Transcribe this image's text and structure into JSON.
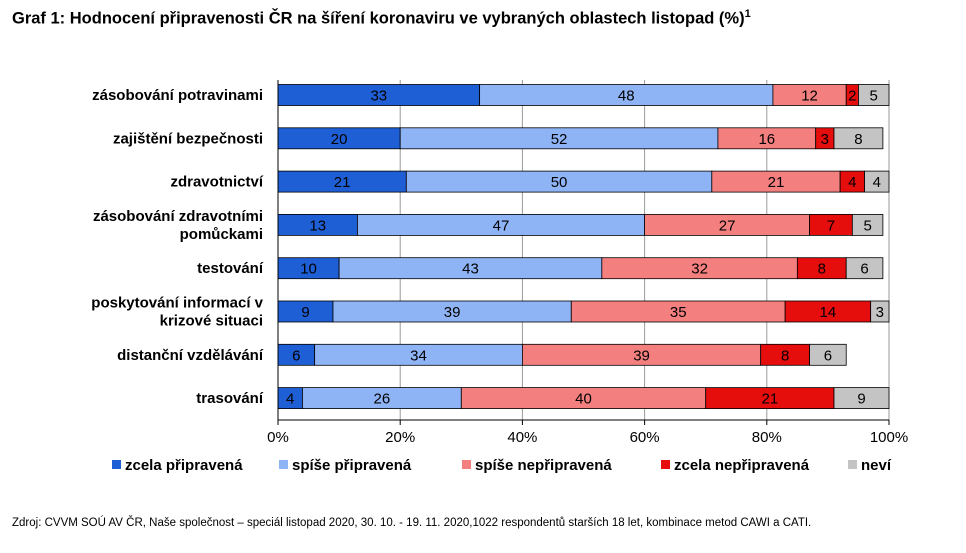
{
  "title": "Graf 1: Hodnocení připravenosti ČR na šíření koronaviru ve vybraných oblastech listopad (%)",
  "title_superscript": "1",
  "source": "Zdroj: CVVM SOÚ AV ČR, Naše společnost – speciál listopad 2020, 30. 10. - 19. 11. 2020,1022 respondentů starších 18 let, kombinace metod CAWI a CATI.",
  "chart_data": {
    "type": "bar",
    "orientation": "horizontal",
    "stacked": "percent",
    "categories": [
      [
        "zásobování potravinami"
      ],
      [
        "zajištění bezpečnosti"
      ],
      [
        "zdravotnictví"
      ],
      [
        "zásobování zdravotními",
        "pomůckami"
      ],
      [
        "testování"
      ],
      [
        "poskytování informací v",
        "krizové situaci"
      ],
      [
        "distanční vzdělávání"
      ],
      [
        "trasování"
      ]
    ],
    "series": [
      {
        "name": "zcela připravená",
        "color": "#1f5fd6",
        "values": [
          33,
          20,
          21,
          13,
          10,
          9,
          6,
          4
        ]
      },
      {
        "name": "spíše připravená",
        "color": "#8fb4f6",
        "values": [
          48,
          52,
          50,
          47,
          43,
          39,
          34,
          26
        ]
      },
      {
        "name": "spíše nepřipravená",
        "color": "#f47f7f",
        "values": [
          12,
          16,
          21,
          27,
          32,
          35,
          39,
          40
        ]
      },
      {
        "name": "zcela nepřipravená",
        "color": "#e60d0d",
        "values": [
          2,
          3,
          4,
          7,
          8,
          14,
          8,
          21
        ]
      },
      {
        "name": "neví",
        "color": "#c4c4c4",
        "values": [
          5,
          8,
          4,
          5,
          6,
          3,
          6,
          9
        ]
      }
    ],
    "x_ticks": [
      "0%",
      "20%",
      "40%",
      "60%",
      "80%",
      "100%"
    ],
    "xlim": [
      0,
      100
    ],
    "grid": true,
    "legend_position": "bottom"
  }
}
